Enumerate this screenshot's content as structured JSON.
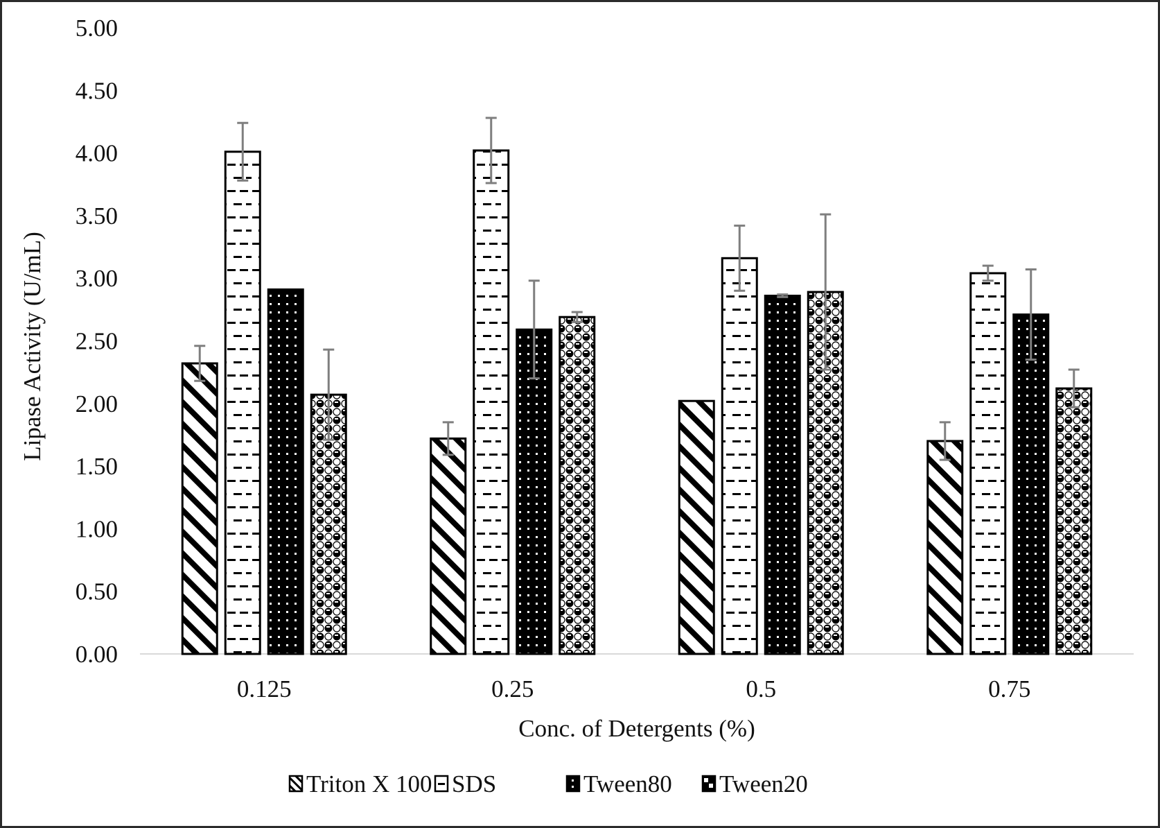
{
  "chart_data": {
    "type": "bar",
    "title": "",
    "xlabel": "Conc. of Detergents (%)",
    "ylabel": "Lipase Activity (U/mL)",
    "ylim": [
      0,
      5
    ],
    "yticks": [
      "0.00",
      "0.50",
      "1.00",
      "1.50",
      "2.00",
      "2.50",
      "3.00",
      "3.50",
      "4.00",
      "4.50",
      "5.00"
    ],
    "ytick_values": [
      0,
      0.5,
      1,
      1.5,
      2,
      2.5,
      3,
      3.5,
      4,
      4.5,
      5
    ],
    "categories": [
      "0.125",
      "0.25",
      "0.5",
      "0.75"
    ],
    "grid": false,
    "legend_position": "bottom",
    "series": [
      {
        "name": "Triton X 100",
        "pattern": "diagonal-stripes",
        "values": [
          2.32,
          1.72,
          2.02,
          1.7
        ],
        "errors": [
          0.14,
          0.13,
          0.0,
          0.15
        ]
      },
      {
        "name": "SDS",
        "pattern": "dashes",
        "values": [
          4.01,
          4.02,
          3.16,
          3.04
        ],
        "errors": [
          0.23,
          0.26,
          0.26,
          0.06
        ]
      },
      {
        "name": "Tween80",
        "pattern": "black-dots",
        "values": [
          2.91,
          2.59,
          2.86,
          2.71
        ],
        "errors": [
          0.0,
          0.39,
          0.01,
          0.36
        ]
      },
      {
        "name": "Tween20",
        "pattern": "checker-circles",
        "values": [
          2.07,
          2.69,
          2.89,
          2.12
        ],
        "errors": [
          0.36,
          0.04,
          0.62,
          0.15
        ]
      }
    ],
    "colors": {
      "bar_stroke": "#000000",
      "error_bar": "#7f7f7f",
      "axis_line": "#d9d9d9",
      "frame": "#2b2b2b"
    }
  }
}
